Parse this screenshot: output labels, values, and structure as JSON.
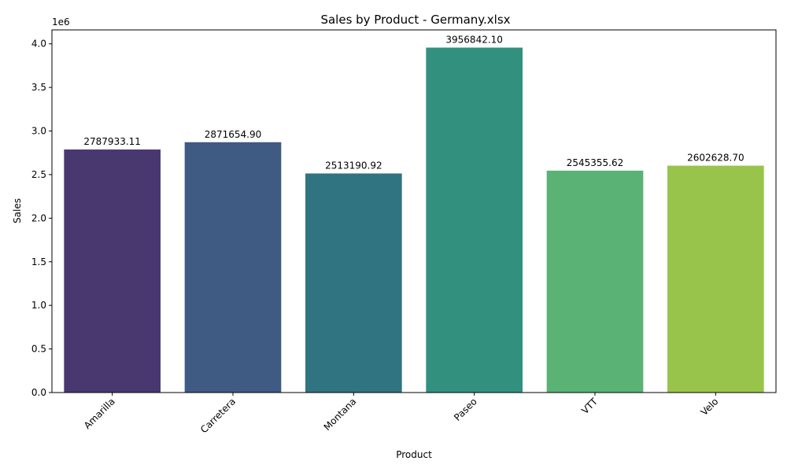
{
  "chart_data": {
    "type": "bar",
    "title": "Sales by Product - Germany.xlsx",
    "xlabel": "Product",
    "ylabel": "Sales",
    "y_offset_text": "1e6",
    "ylim": [
      0,
      4.16
    ],
    "y_ticks": [
      0.0,
      0.5,
      1.0,
      1.5,
      2.0,
      2.5,
      3.0,
      3.5,
      4.0
    ],
    "y_tick_labels": [
      "0.0",
      "0.5",
      "1.0",
      "1.5",
      "2.0",
      "2.5",
      "3.0",
      "3.5",
      "4.0"
    ],
    "categories": [
      "Amarilla",
      "Carretera",
      "Montana",
      "Paseo",
      "VTT",
      "Velo"
    ],
    "values": [
      2787933.11,
      2871654.9,
      2513190.92,
      3956842.1,
      2545355.62,
      2602628.7
    ],
    "value_labels": [
      "2787933.11",
      "2871654.90",
      "2513190.92",
      "3956842.10",
      "2545355.62",
      "2602628.70"
    ],
    "colors": [
      "#48386f",
      "#3f5a83",
      "#317481",
      "#32917e",
      "#5ab274",
      "#99c44c"
    ],
    "grid": false,
    "legend": "none"
  }
}
